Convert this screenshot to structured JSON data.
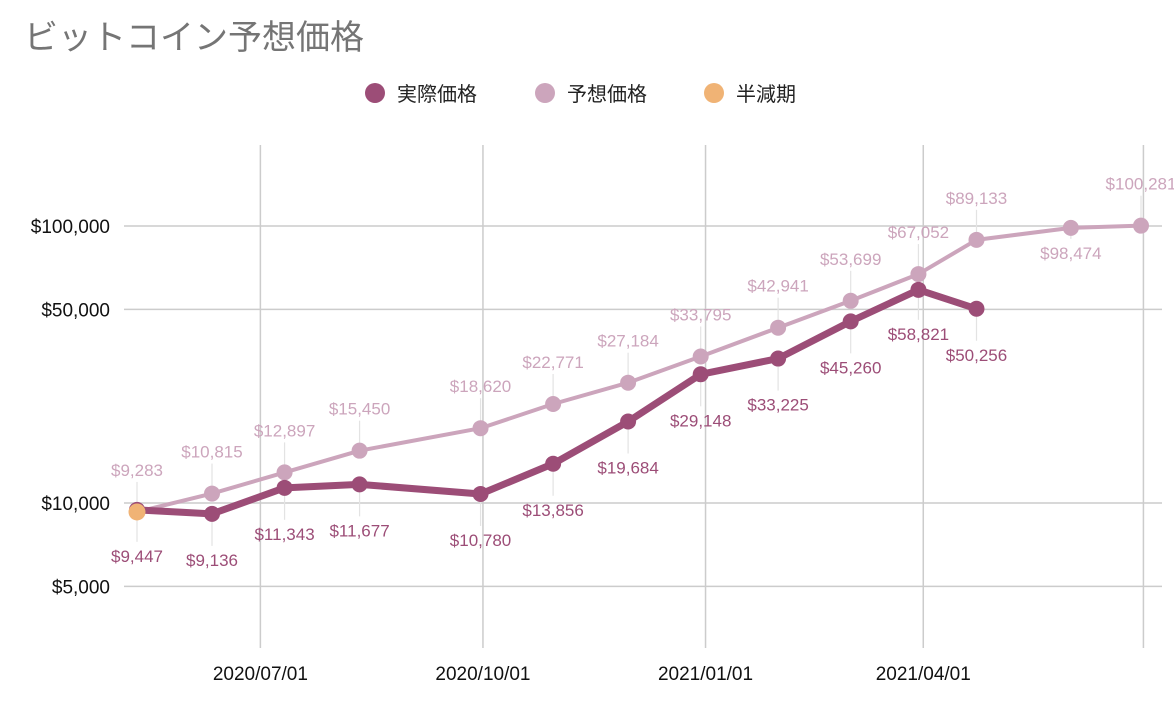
{
  "chart_data": {
    "type": "line",
    "title": "ビットコイン予想価格",
    "legend_position": "top-center",
    "y_scale": "log",
    "ylim": [
      3000,
      200000
    ],
    "grid": true,
    "yticks": [
      {
        "value": 5000,
        "label": "$5,000"
      },
      {
        "value": 10000,
        "label": "$10,000"
      },
      {
        "value": 50000,
        "label": "$50,000"
      },
      {
        "value": 100000,
        "label": "$100,000"
      }
    ],
    "xticks": [
      "2020/07/01",
      "2020/10/01",
      "2021/01/01",
      "2021/04/01"
    ],
    "x_range": [
      "2020-05-11",
      "2021-06-30"
    ],
    "series": [
      {
        "name": "実際価格",
        "color": "#9c4d77",
        "points": [
          {
            "x": "2020-05-11",
            "y": 9447,
            "label": "$9,447"
          },
          {
            "x": "2020-06-11",
            "y": 9136,
            "label": "$9,136"
          },
          {
            "x": "2020-07-11",
            "y": 11343,
            "label": "$11,343"
          },
          {
            "x": "2020-08-11",
            "y": 11677,
            "label": "$11,677"
          },
          {
            "x": "2020-09-30",
            "y": 10780,
            "label": "$10,780"
          },
          {
            "x": "2020-10-30",
            "y": 13856,
            "label": "$13,856"
          },
          {
            "x": "2020-11-30",
            "y": 19684,
            "label": "$19,684"
          },
          {
            "x": "2020-12-30",
            "y": 29148,
            "label": "$29,148"
          },
          {
            "x": "2021-01-31",
            "y": 33225,
            "label": "$33,225"
          },
          {
            "x": "2021-03-02",
            "y": 45260,
            "label": "$45,260"
          },
          {
            "x": "2021-03-30",
            "y": 58821,
            "label": "$58,821"
          },
          {
            "x": "2021-04-23",
            "y": 50256,
            "label": "$50,256"
          }
        ]
      },
      {
        "name": "予想価格",
        "color": "#cca5bc",
        "points": [
          {
            "x": "2020-05-11",
            "y": 9283,
            "label": "$9,283"
          },
          {
            "x": "2020-06-11",
            "y": 10815,
            "label": "$10,815"
          },
          {
            "x": "2020-07-11",
            "y": 12897,
            "label": "$12,897"
          },
          {
            "x": "2020-08-11",
            "y": 15450,
            "label": "$15,450"
          },
          {
            "x": "2020-09-30",
            "y": 18620,
            "label": "$18,620"
          },
          {
            "x": "2020-10-30",
            "y": 22771,
            "label": "$22,771"
          },
          {
            "x": "2020-11-30",
            "y": 27184,
            "label": "$27,184"
          },
          {
            "x": "2020-12-30",
            "y": 33795,
            "label": "$33,795"
          },
          {
            "x": "2021-01-31",
            "y": 42941,
            "label": "$42,941"
          },
          {
            "x": "2021-03-02",
            "y": 53699,
            "label": "$53,699"
          },
          {
            "x": "2021-03-30",
            "y": 67052,
            "label": "$67,052"
          },
          {
            "x": "2021-04-23",
            "y": 89133,
            "label": "$89,133"
          },
          {
            "x": "2021-06-01",
            "y": 98474,
            "label": "$98,474"
          },
          {
            "x": "2021-06-30",
            "y": 100281,
            "label": "$100,281"
          }
        ]
      },
      {
        "name": "半減期",
        "color": "#f0b375",
        "points": [
          {
            "x": "2020-05-11",
            "y": 9283,
            "label": ""
          }
        ]
      }
    ]
  }
}
